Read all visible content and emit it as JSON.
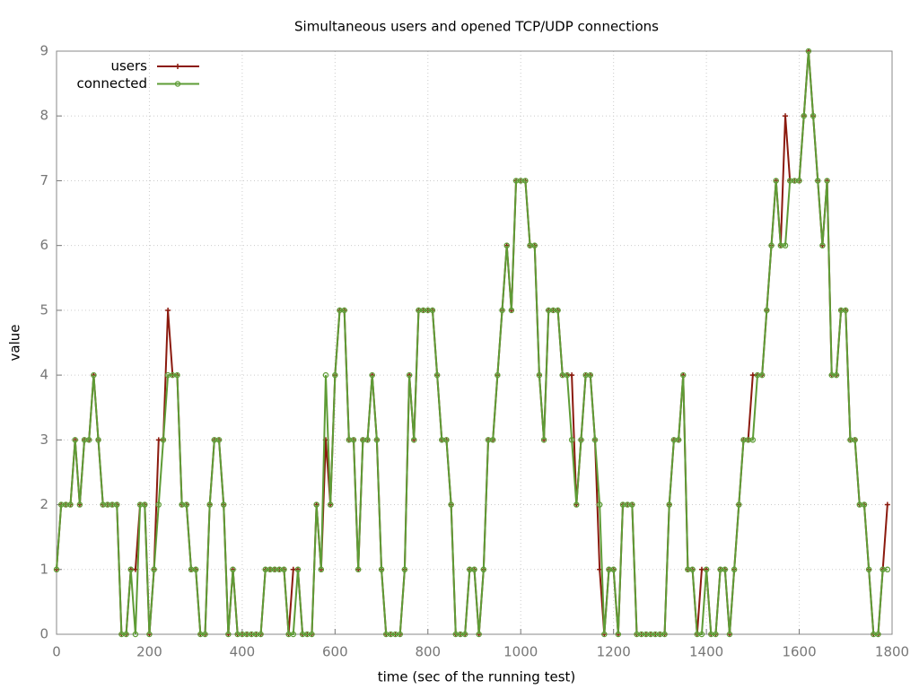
{
  "chart_data": {
    "type": "line",
    "title": "Simultaneous users and opened TCP/UDP connections",
    "xlabel": "time (sec of the running test)",
    "ylabel": "value",
    "x": [
      0,
      10,
      20,
      30,
      40,
      50,
      60,
      70,
      80,
      90,
      100,
      110,
      120,
      130,
      140,
      150,
      160,
      170,
      180,
      190,
      200,
      210,
      220,
      230,
      240,
      250,
      260,
      270,
      280,
      290,
      300,
      310,
      320,
      330,
      340,
      350,
      360,
      370,
      380,
      390,
      400,
      410,
      420,
      430,
      440,
      450,
      460,
      470,
      480,
      490,
      500,
      510,
      520,
      530,
      540,
      550,
      560,
      570,
      580,
      590,
      600,
      610,
      620,
      630,
      640,
      650,
      660,
      670,
      680,
      690,
      700,
      710,
      720,
      730,
      740,
      750,
      760,
      770,
      780,
      790,
      800,
      810,
      820,
      830,
      840,
      850,
      860,
      870,
      880,
      890,
      900,
      910,
      920,
      930,
      940,
      950,
      960,
      970,
      980,
      990,
      1000,
      1010,
      1020,
      1030,
      1040,
      1050,
      1060,
      1070,
      1080,
      1090,
      1100,
      1110,
      1120,
      1130,
      1140,
      1150,
      1160,
      1170,
      1180,
      1190,
      1200,
      1210,
      1220,
      1230,
      1240,
      1250,
      1260,
      1270,
      1280,
      1290,
      1300,
      1310,
      1320,
      1330,
      1340,
      1350,
      1360,
      1370,
      1380,
      1390,
      1400,
      1410,
      1420,
      1430,
      1440,
      1450,
      1460,
      1470,
      1480,
      1490,
      1500,
      1510,
      1520,
      1530,
      1540,
      1550,
      1560,
      1570,
      1580,
      1590,
      1600,
      1610,
      1620,
      1630,
      1640,
      1650,
      1660,
      1670,
      1680,
      1690,
      1700,
      1710,
      1720,
      1730,
      1740,
      1750,
      1760,
      1770,
      1780,
      1790
    ],
    "series": [
      {
        "name": "users",
        "color": "#8b1a0e",
        "marker": "plus",
        "values": [
          1,
          2,
          2,
          2,
          3,
          2,
          3,
          3,
          4,
          3,
          2,
          2,
          2,
          2,
          0,
          0,
          1,
          1,
          2,
          2,
          0,
          1,
          3,
          3,
          5,
          4,
          4,
          2,
          2,
          1,
          1,
          0,
          0,
          2,
          3,
          3,
          2,
          0,
          1,
          0,
          0,
          0,
          0,
          0,
          0,
          1,
          1,
          1,
          1,
          1,
          0,
          1,
          1,
          0,
          0,
          0,
          2,
          1,
          3,
          2,
          4,
          5,
          5,
          3,
          3,
          1,
          3,
          3,
          4,
          3,
          1,
          0,
          0,
          0,
          0,
          1,
          4,
          3,
          5,
          5,
          5,
          5,
          4,
          3,
          3,
          2,
          0,
          0,
          0,
          1,
          1,
          0,
          1,
          3,
          3,
          4,
          5,
          6,
          5,
          7,
          7,
          7,
          6,
          6,
          4,
          3,
          5,
          5,
          5,
          4,
          4,
          4,
          2,
          3,
          4,
          4,
          3,
          1,
          0,
          1,
          1,
          0,
          2,
          2,
          2,
          0,
          0,
          0,
          0,
          0,
          0,
          0,
          2,
          3,
          3,
          4,
          1,
          1,
          0,
          1,
          1,
          0,
          0,
          1,
          1,
          0,
          1,
          2,
          3,
          3,
          4,
          4,
          4,
          5,
          6,
          7,
          6,
          8,
          7,
          7,
          7,
          8,
          9,
          8,
          7,
          6,
          7,
          4,
          4,
          5,
          5,
          3,
          3,
          2,
          2,
          1,
          0,
          0,
          1,
          2
        ]
      },
      {
        "name": "connected",
        "color": "#5e9c36",
        "marker": "circle",
        "values": [
          1,
          2,
          2,
          2,
          3,
          2,
          3,
          3,
          4,
          3,
          2,
          2,
          2,
          2,
          0,
          0,
          1,
          0,
          2,
          2,
          0,
          1,
          2,
          3,
          4,
          4,
          4,
          2,
          2,
          1,
          1,
          0,
          0,
          2,
          3,
          3,
          2,
          0,
          1,
          0,
          0,
          0,
          0,
          0,
          0,
          1,
          1,
          1,
          1,
          1,
          0,
          0,
          1,
          0,
          0,
          0,
          2,
          1,
          4,
          2,
          4,
          5,
          5,
          3,
          3,
          1,
          3,
          3,
          4,
          3,
          1,
          0,
          0,
          0,
          0,
          1,
          4,
          3,
          5,
          5,
          5,
          5,
          4,
          3,
          3,
          2,
          0,
          0,
          0,
          1,
          1,
          0,
          1,
          3,
          3,
          4,
          5,
          6,
          5,
          7,
          7,
          7,
          6,
          6,
          4,
          3,
          5,
          5,
          5,
          4,
          4,
          3,
          2,
          3,
          4,
          4,
          3,
          2,
          0,
          1,
          1,
          0,
          2,
          2,
          2,
          0,
          0,
          0,
          0,
          0,
          0,
          0,
          2,
          3,
          3,
          4,
          1,
          1,
          0,
          0,
          1,
          0,
          0,
          1,
          1,
          0,
          1,
          2,
          3,
          3,
          3,
          4,
          4,
          5,
          6,
          7,
          6,
          6,
          7,
          7,
          7,
          8,
          9,
          8,
          7,
          6,
          7,
          4,
          4,
          5,
          5,
          3,
          3,
          2,
          2,
          1,
          0,
          0,
          1,
          1
        ]
      }
    ],
    "xlim": [
      0,
      1800
    ],
    "xticks": [
      0,
      200,
      400,
      600,
      800,
      1000,
      1200,
      1400,
      1600,
      1800
    ],
    "ylim": [
      0,
      9
    ],
    "yticks": [
      0,
      1,
      2,
      3,
      4,
      5,
      6,
      7,
      8,
      9
    ],
    "grid": true,
    "legend": "top-left"
  }
}
